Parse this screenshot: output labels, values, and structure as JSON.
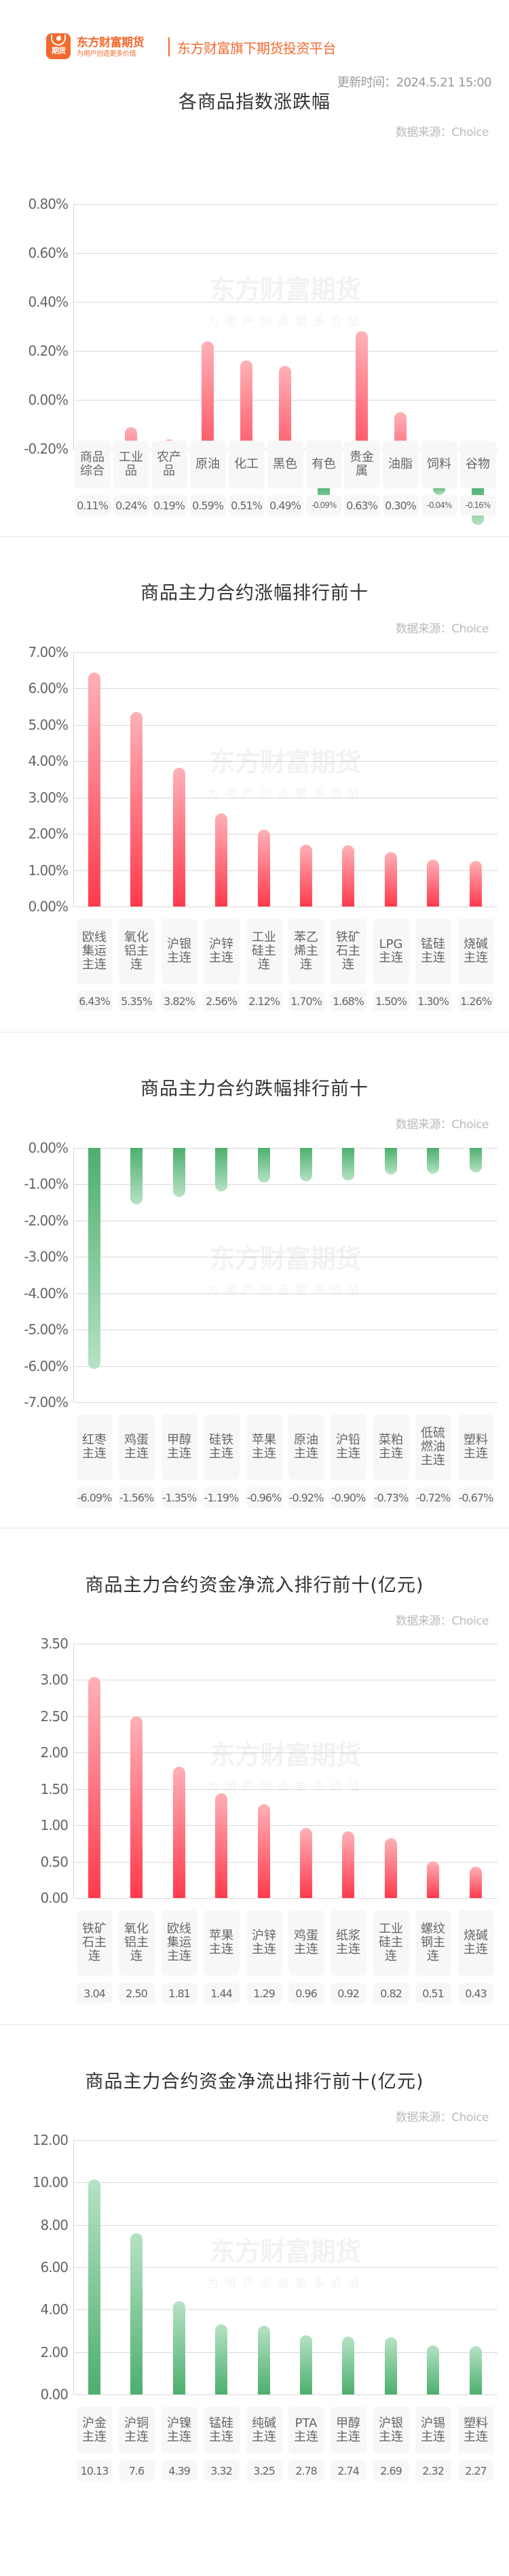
{
  "header": {
    "logo_icon": "dongfang-futures-logo-icon",
    "logo_icon_text": "期货",
    "brand_name": "东方财富期货",
    "brand_slogan": "为用户创造更多价值",
    "tagline": "东方财富旗下期货投资平台",
    "update_time": "更新时间：2024.5.21 15:00"
  },
  "watermark": {
    "main": "东方财富期货",
    "sub": "为用户创造更多价值"
  },
  "colors": {
    "brand": "#f26a2e",
    "up_red": "#ff3a4c",
    "down_green": "#4caf6d"
  },
  "sections": [
    {
      "title": "各商品指数涨跌幅",
      "source": "数据来源：Choice",
      "yticks": [
        "0.80%",
        "0.60%",
        "0.40%",
        "0.20%",
        "0.00%",
        "-0.20%"
      ],
      "categories": [
        "商品综合",
        "工业品",
        "农产品",
        "原油",
        "化工",
        "黑色",
        "有色",
        "贵金属",
        "油脂",
        "饲料",
        "谷物"
      ],
      "value_labels": [
        "0.11%",
        "0.24%",
        "0.19%",
        "0.59%",
        "0.51%",
        "0.49%",
        "-0.09%",
        "0.63%",
        "0.30%",
        "-0.04%",
        "-0.16%"
      ]
    },
    {
      "title": "商品主力合约涨幅排行前十",
      "source": "数据来源：Choice",
      "yticks": [
        "7.00%",
        "6.00%",
        "5.00%",
        "4.00%",
        "3.00%",
        "2.00%",
        "1.00%",
        "0.00%"
      ],
      "categories": [
        "欧线集运主连",
        "氧化铝主连",
        "沪银主连",
        "沪锌主连",
        "工业硅主连",
        "苯乙烯主连",
        "铁矿石主连",
        "LPG主连",
        "锰硅主连",
        "烧碱主连"
      ],
      "value_labels": [
        "6.43%",
        "5.35%",
        "3.82%",
        "2.56%",
        "2.12%",
        "1.70%",
        "1.68%",
        "1.50%",
        "1.30%",
        "1.26%"
      ]
    },
    {
      "title": "商品主力合约跌幅排行前十",
      "source": "数据来源：Choice",
      "yticks": [
        "0.00%",
        "-1.00%",
        "-2.00%",
        "-3.00%",
        "-4.00%",
        "-5.00%",
        "-6.00%",
        "-7.00%"
      ],
      "categories": [
        "红枣主连",
        "鸡蛋主连",
        "甲醇主连",
        "硅铁主连",
        "苹果主连",
        "原油主连",
        "沪铅主连",
        "菜粕主连",
        "低硫燃油主连",
        "塑料主连"
      ],
      "value_labels": [
        "-6.09%",
        "-1.56%",
        "-1.35%",
        "-1.19%",
        "-0.96%",
        "-0.92%",
        "-0.90%",
        "-0.73%",
        "-0.72%",
        "-0.67%"
      ]
    },
    {
      "title": "商品主力合约资金净流入排行前十(亿元)",
      "source": "数据来源：Choice",
      "yticks": [
        "3.50",
        "3.00",
        "2.50",
        "2.00",
        "1.50",
        "1.00",
        "0.50",
        "0.00"
      ],
      "categories": [
        "铁矿石主连",
        "氧化铝主连",
        "欧线集运主连",
        "苹果主连",
        "沪锌主连",
        "鸡蛋主连",
        "纸浆主连",
        "工业硅主连",
        "螺纹钢主连",
        "烧碱主连"
      ],
      "value_labels": [
        "3.04",
        "2.50",
        "1.81",
        "1.44",
        "1.29",
        "0.96",
        "0.92",
        "0.82",
        "0.51",
        "0.43"
      ]
    },
    {
      "title": "商品主力合约资金净流出排行前十(亿元)",
      "source": "数据来源：Choice",
      "yticks": [
        "12.00",
        "10.00",
        "8.00",
        "6.00",
        "4.00",
        "2.00",
        "0.00"
      ],
      "categories": [
        "沪金主连",
        "沪铜主连",
        "沪镍主连",
        "锰硅主连",
        "纯碱主连",
        "PTA主连",
        "甲醇主连",
        "沪银主连",
        "沪锡主连",
        "塑料主连"
      ],
      "value_labels": [
        "10.13",
        "7.6",
        "4.39",
        "3.32",
        "3.25",
        "2.78",
        "2.74",
        "2.69",
        "2.32",
        "2.27"
      ]
    }
  ],
  "chart_data": [
    {
      "type": "bar",
      "title": "各商品指数涨跌幅",
      "categories": [
        "商品综合",
        "工业品",
        "农产品",
        "原油",
        "化工",
        "黑色",
        "有色",
        "贵金属",
        "油脂",
        "饲料",
        "谷物"
      ],
      "values": [
        0.11,
        0.24,
        0.19,
        0.59,
        0.51,
        0.49,
        -0.09,
        0.63,
        0.3,
        -0.04,
        -0.16
      ],
      "unit": "%",
      "xlabel": "",
      "ylabel": "",
      "ylim": [
        -0.2,
        0.8
      ],
      "yticks": [
        0.8,
        0.6,
        0.4,
        0.2,
        0.0,
        -0.2
      ],
      "grid": true,
      "legend": "none",
      "annotation": "数据来源：Choice"
    },
    {
      "type": "bar",
      "title": "商品主力合约涨幅排行前十",
      "categories": [
        "欧线集运主连",
        "氧化铝主连",
        "沪银主连",
        "沪锌主连",
        "工业硅主连",
        "苯乙烯主连",
        "铁矿石主连",
        "LPG主连",
        "锰硅主连",
        "烧碱主连"
      ],
      "values": [
        6.43,
        5.35,
        3.82,
        2.56,
        2.12,
        1.7,
        1.68,
        1.5,
        1.3,
        1.26
      ],
      "unit": "%",
      "xlabel": "",
      "ylabel": "",
      "ylim": [
        0,
        7.0
      ],
      "grid": true,
      "legend": "none",
      "annotation": "数据来源：Choice"
    },
    {
      "type": "bar",
      "title": "商品主力合约跌幅排行前十",
      "categories": [
        "红枣主连",
        "鸡蛋主连",
        "甲醇主连",
        "硅铁主连",
        "苹果主连",
        "原油主连",
        "沪铅主连",
        "菜粕主连",
        "低硫燃油主连",
        "塑料主连"
      ],
      "values": [
        -6.09,
        -1.56,
        -1.35,
        -1.19,
        -0.96,
        -0.92,
        -0.9,
        -0.73,
        -0.72,
        -0.67
      ],
      "unit": "%",
      "xlabel": "",
      "ylabel": "",
      "ylim": [
        -7.0,
        0
      ],
      "grid": true,
      "legend": "none",
      "annotation": "数据来源：Choice"
    },
    {
      "type": "bar",
      "title": "商品主力合约资金净流入排行前十(亿元)",
      "categories": [
        "铁矿石主连",
        "氧化铝主连",
        "欧线集运主连",
        "苹果主连",
        "沪锌主连",
        "鸡蛋主连",
        "纸浆主连",
        "工业硅主连",
        "螺纹钢主连",
        "烧碱主连"
      ],
      "values": [
        3.04,
        2.5,
        1.81,
        1.44,
        1.29,
        0.96,
        0.92,
        0.82,
        0.51,
        0.43
      ],
      "unit": "亿元",
      "xlabel": "",
      "ylabel": "",
      "ylim": [
        0,
        3.5
      ],
      "grid": true,
      "legend": "none",
      "annotation": "数据来源：Choice"
    },
    {
      "type": "bar",
      "title": "商品主力合约资金净流出排行前十(亿元)",
      "categories": [
        "沪金主连",
        "沪铜主连",
        "沪镍主连",
        "锰硅主连",
        "纯碱主连",
        "PTA主连",
        "甲醇主连",
        "沪银主连",
        "沪锡主连",
        "塑料主连"
      ],
      "values": [
        10.13,
        7.6,
        4.39,
        3.32,
        3.25,
        2.78,
        2.74,
        2.69,
        2.32,
        2.27
      ],
      "unit": "亿元",
      "xlabel": "",
      "ylabel": "",
      "ylim": [
        0,
        12.0
      ],
      "grid": true,
      "legend": "none",
      "annotation": "数据来源：Choice"
    }
  ]
}
